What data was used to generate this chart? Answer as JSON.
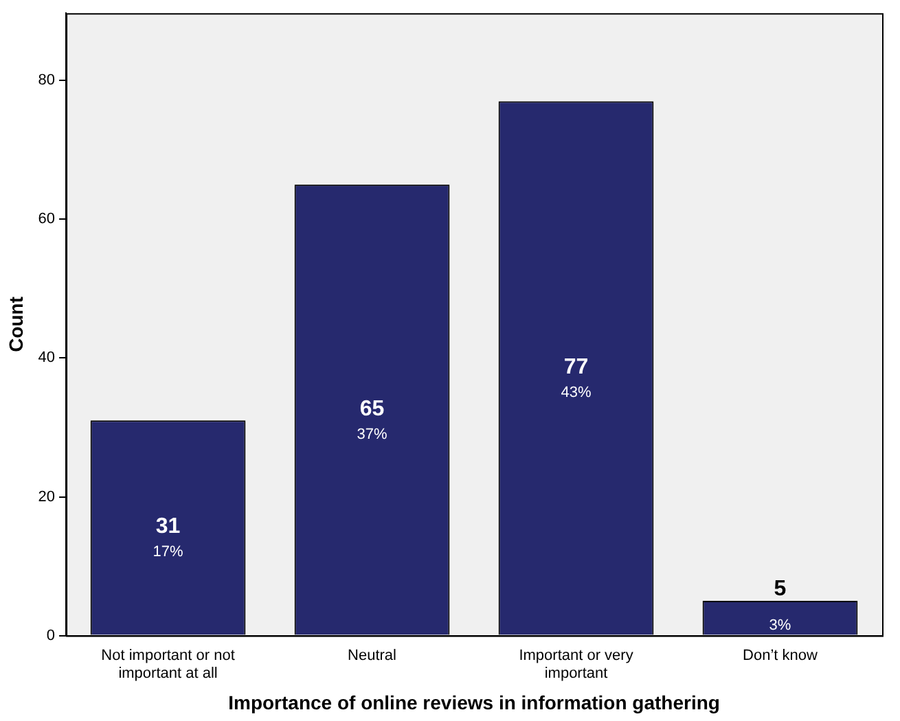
{
  "chart_data": {
    "type": "bar",
    "xlabel": "Importance of online reviews in information gathering",
    "ylabel": "Count",
    "categories": [
      "Not important or not important at all",
      "Neutral",
      "Important or very important",
      "Don’t know"
    ],
    "values": [
      31,
      65,
      77,
      5
    ],
    "color": "#26296e",
    "value_labels": [
      "31\n17%",
      "65\n37%",
      "77\n43%",
      "5\n3%"
    ],
    "ylim": [
      0,
      89.7
    ],
    "yticks": [
      0,
      20,
      40,
      60,
      80
    ],
    "grid": false,
    "legend": false
  }
}
